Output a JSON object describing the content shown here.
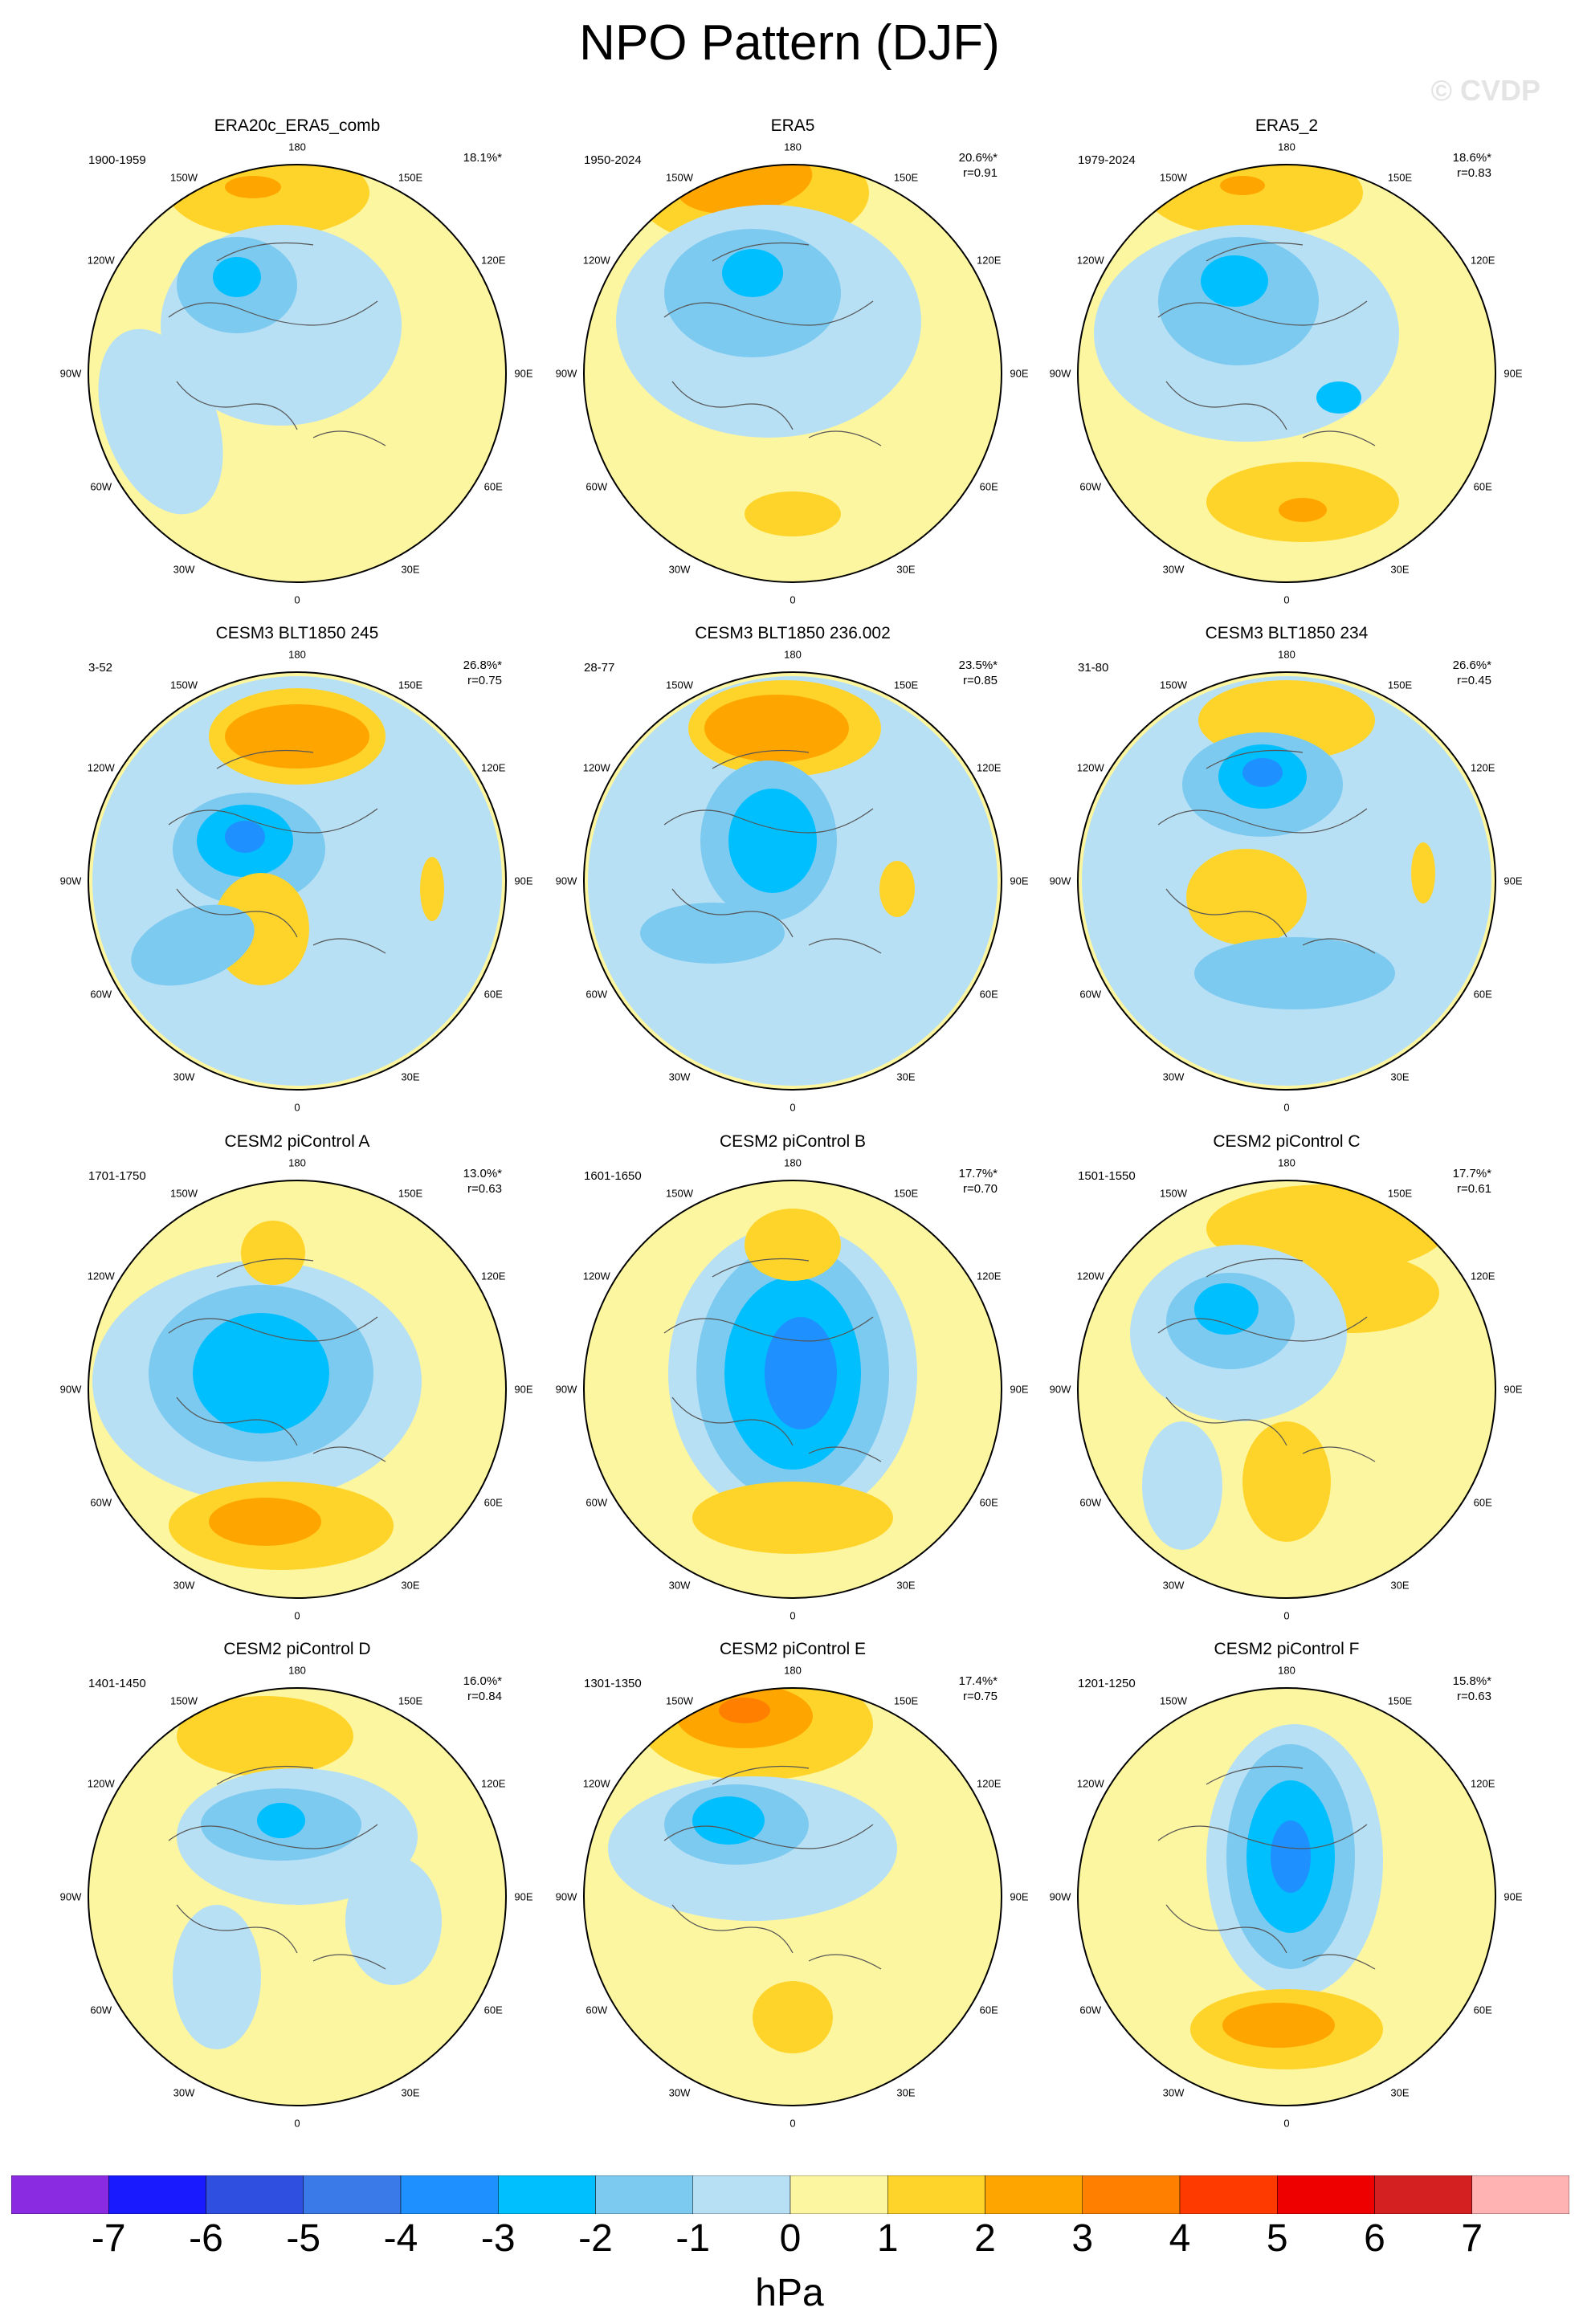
{
  "title": "NPO Pattern (DJF)",
  "watermark": "© CVDP",
  "lon_labels": [
    "180",
    "150E",
    "120E",
    "90E",
    "60E",
    "30E",
    "0",
    "30W",
    "60W",
    "90W",
    "120W",
    "150W"
  ],
  "panels": [
    {
      "title": "ERA20c_ERA5_comb",
      "period": "1900-1959",
      "pct": "18.1%*",
      "r": ""
    },
    {
      "title": "ERA5",
      "period": "1950-2024",
      "pct": "20.6%*",
      "r": "r=0.91"
    },
    {
      "title": "ERA5_2",
      "period": "1979-2024",
      "pct": "18.6%*",
      "r": "r=0.83"
    },
    {
      "title": "CESM3 BLT1850 245",
      "period": "3-52",
      "pct": "26.8%*",
      "r": "r=0.75"
    },
    {
      "title": "CESM3 BLT1850 236.002",
      "period": "28-77",
      "pct": "23.5%*",
      "r": "r=0.85"
    },
    {
      "title": "CESM3 BLT1850 234",
      "period": "31-80",
      "pct": "26.6%*",
      "r": "r=0.45"
    },
    {
      "title": "CESM2 piControl A",
      "period": "1701-1750",
      "pct": "13.0%*",
      "r": "r=0.63"
    },
    {
      "title": "CESM2 piControl B",
      "period": "1601-1650",
      "pct": "17.7%*",
      "r": "r=0.70"
    },
    {
      "title": "CESM2 piControl C",
      "period": "1501-1550",
      "pct": "17.7%*",
      "r": "r=0.61"
    },
    {
      "title": "CESM2 piControl D",
      "period": "1401-1450",
      "pct": "16.0%*",
      "r": "r=0.84"
    },
    {
      "title": "CESM2 piControl E",
      "period": "1301-1350",
      "pct": "17.4%*",
      "r": "r=0.75"
    },
    {
      "title": "CESM2 piControl F",
      "period": "1201-1250",
      "pct": "15.8%*",
      "r": "r=0.63"
    }
  ],
  "colorbar": {
    "unit": "hPa",
    "ticks": [
      "-7",
      "-6",
      "-5",
      "-4",
      "-3",
      "-2",
      "-1",
      "0",
      "1",
      "2",
      "3",
      "4",
      "5",
      "6",
      "7"
    ],
    "colors": [
      "#8a2be2",
      "#1a1aff",
      "#2f4fe0",
      "#3a7ae8",
      "#1e90ff",
      "#00bfff",
      "#7ccaf0",
      "#b8e0f5",
      "#fdf6a0",
      "#ffd42a",
      "#ffa500",
      "#ff7f00",
      "#ff3a00",
      "#ee0000",
      "#d42020",
      "#ffb3b3"
    ]
  },
  "palette": {
    "neg1": "#b8e0f5",
    "neg2": "#7ccaf0",
    "neg3": "#00bfff",
    "neg4": "#1e90ff",
    "neg5": "#3a7ae8",
    "pos1": "#ffd42a",
    "pos2": "#ffa500",
    "pos3": "#ff7f00",
    "background": "#fdf6a0"
  }
}
